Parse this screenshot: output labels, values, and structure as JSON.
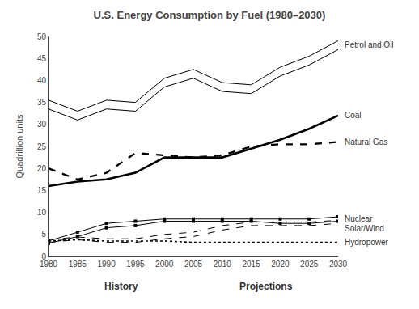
{
  "chart_data": {
    "type": "line",
    "title": "U.S. Energy Consumption by Fuel (1980–2030)",
    "ylabel": "Quadrillion units",
    "annotations": [
      "History",
      "Projections"
    ],
    "x": [
      1980,
      1985,
      1990,
      1995,
      2000,
      2005,
      2010,
      2015,
      2020,
      2025,
      2030
    ],
    "xlim": [
      1980,
      2030
    ],
    "xticks": [
      1980,
      1985,
      1990,
      1995,
      2000,
      2005,
      2010,
      2015,
      2020,
      2025,
      2030
    ],
    "ylim": [
      0,
      50
    ],
    "yticks": [
      0,
      5,
      10,
      15,
      20,
      25,
      30,
      35,
      40,
      45,
      50
    ],
    "grid": false,
    "color": "#000000",
    "series": [
      {
        "name": "Petrol and Oil",
        "line_style": "thin",
        "values": [
          33.5,
          31.0,
          33.5,
          33.0,
          38.5,
          40.5,
          37.5,
          37.0,
          41.0,
          43.5,
          47.0
        ]
      },
      {
        "name": "Petrol and Oil",
        "line_style": "thin",
        "values": [
          35.5,
          33.0,
          35.5,
          35.0,
          40.5,
          42.5,
          39.5,
          39.0,
          43.0,
          45.5,
          49.0
        ]
      },
      {
        "name": "Coal",
        "line_style": "thick",
        "values": [
          16.0,
          17.0,
          17.5,
          19.0,
          22.5,
          22.5,
          22.5,
          24.5,
          26.5,
          29.0,
          32.0
        ]
      },
      {
        "name": "Natural Gas",
        "line_style": "thickdash",
        "values": [
          20.0,
          17.5,
          19.0,
          23.5,
          23.0,
          22.5,
          23.0,
          25.0,
          25.5,
          25.5,
          26.0
        ]
      },
      {
        "name": "Nuclear",
        "line_style": "thin",
        "marker": "square",
        "values": [
          3.0,
          4.5,
          6.5,
          7.0,
          8.0,
          8.0,
          8.0,
          8.0,
          7.5,
          7.5,
          8.0
        ]
      },
      {
        "name": "Nuclear",
        "line_style": "thin",
        "marker": "square",
        "values": [
          3.5,
          5.5,
          7.5,
          8.0,
          8.5,
          8.5,
          8.5,
          8.5,
          8.5,
          8.5,
          9.0
        ]
      },
      {
        "name": "Solar/Wind",
        "line_style": "thindash",
        "values": [
          3.2,
          3.8,
          3.2,
          3.2,
          4.0,
          4.5,
          6.0,
          7.0,
          7.0,
          7.0,
          7.5
        ]
      },
      {
        "name": "Solar/Wind",
        "line_style": "thindash",
        "values": [
          3.8,
          4.4,
          4.0,
          4.0,
          5.0,
          5.5,
          7.0,
          7.8,
          7.8,
          7.8,
          8.2
        ]
      },
      {
        "name": "Hydropower",
        "line_style": "dot",
        "values": [
          3.5,
          3.8,
          3.5,
          3.5,
          3.5,
          3.2,
          3.2,
          3.2,
          3.2,
          3.2,
          3.2
        ]
      }
    ]
  }
}
